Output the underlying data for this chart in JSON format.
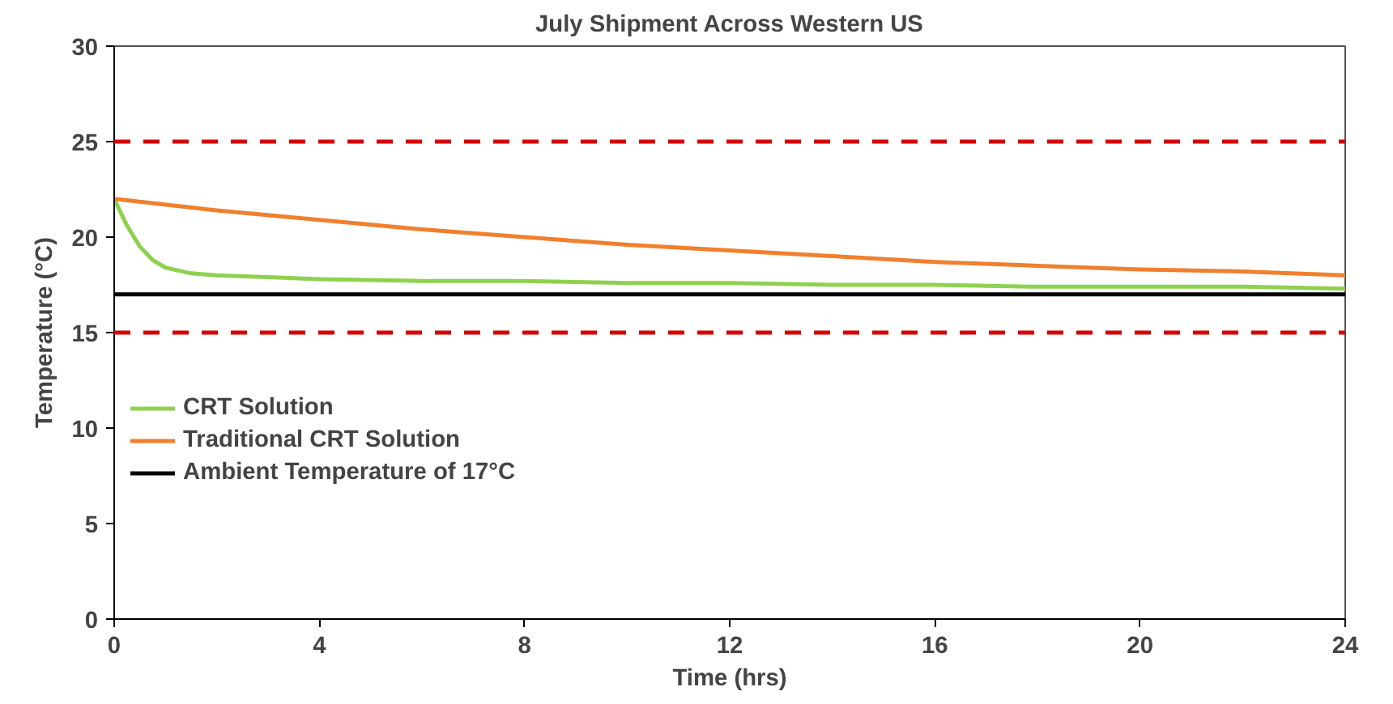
{
  "chart_data": {
    "type": "line",
    "title": "July Shipment Across Western US",
    "xlabel": "Time (hrs)",
    "ylabel": "Temperature (°C)",
    "xlim": [
      0,
      24
    ],
    "xticks": [
      0,
      4,
      8,
      12,
      16,
      20,
      24
    ],
    "ylim": [
      0,
      30
    ],
    "yticks": [
      0,
      5,
      10,
      15,
      20,
      25,
      30
    ],
    "grid": false,
    "legend": "left",
    "line_style": "solid",
    "marker": "none",
    "series": [
      {
        "name": "CRT Solution",
        "color": "#8fd14f",
        "x": [
          0,
          0.25,
          0.5,
          0.75,
          1,
          1.5,
          2,
          3,
          4,
          6,
          8,
          10,
          12,
          14,
          16,
          18,
          20,
          22,
          24
        ],
        "values": [
          22,
          20.6,
          19.5,
          18.8,
          18.4,
          18.1,
          18.0,
          17.9,
          17.8,
          17.7,
          17.7,
          17.6,
          17.6,
          17.5,
          17.5,
          17.4,
          17.4,
          17.4,
          17.3
        ]
      },
      {
        "name": "Traditional CRT Solution",
        "color": "#f07f2e",
        "x": [
          0,
          2,
          4,
          6,
          8,
          10,
          12,
          14,
          16,
          18,
          20,
          22,
          24
        ],
        "values": [
          22,
          21.4,
          20.9,
          20.4,
          20.0,
          19.6,
          19.3,
          19.0,
          18.7,
          18.5,
          18.3,
          18.2,
          18.0
        ]
      },
      {
        "name": "Ambient Temperature of 17°C",
        "color": "#000000",
        "x": [
          0,
          24
        ],
        "values": [
          17,
          17
        ]
      }
    ],
    "ref_lines": [
      {
        "axis": "y",
        "value": 25,
        "color": "#d40000",
        "line_style": "dashed"
      },
      {
        "axis": "y",
        "value": 15,
        "color": "#d40000",
        "line_style": "dashed"
      }
    ]
  }
}
